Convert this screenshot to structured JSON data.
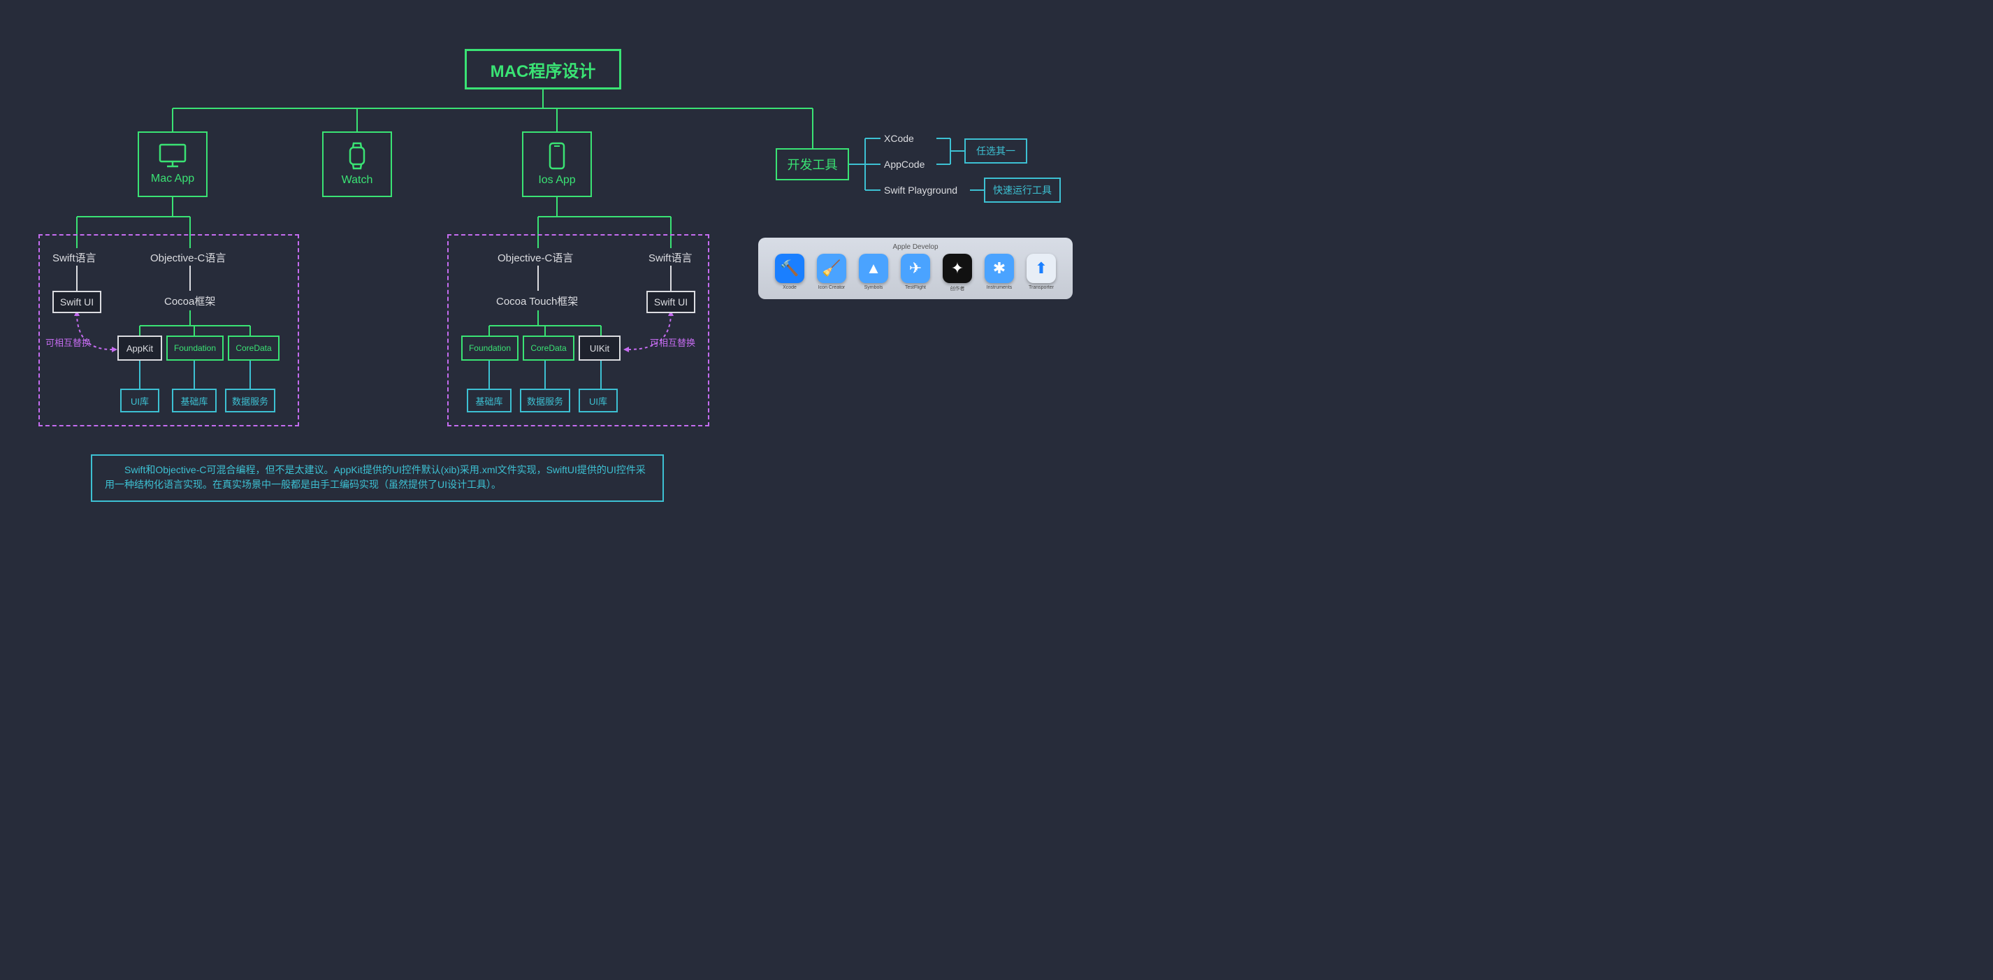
{
  "colors": {
    "bg": "#272c3a",
    "green": "#3ae374",
    "cyan": "#3dc1d3",
    "white": "#dcdde1",
    "purple": "#c56cf0",
    "darkBox": "#1e222d"
  },
  "root": {
    "title": "MAC程序设计",
    "fontSize": 24
  },
  "platforms": {
    "mac": {
      "label": "Mac App"
    },
    "watch": {
      "label": "Watch"
    },
    "ios": {
      "label": "Ios App"
    },
    "devtools": {
      "label": "开发工具"
    }
  },
  "mac": {
    "swiftLang": "Swift语言",
    "objcLang": "Objective-C语言",
    "swiftUI": "Swift UI",
    "cocoa": "Cocoa框架",
    "appkit": "AppKit",
    "foundation": "Foundation",
    "coredata": "CoreData",
    "uiLib": "UI库",
    "baseLib": "基础库",
    "dataSvc": "数据服务",
    "interchangeable": "可相互替换"
  },
  "ios": {
    "swiftLang": "Swift语言",
    "objcLang": "Objective-C语言",
    "swiftUI": "Swift UI",
    "cocoaTouch": "Cocoa Touch框架",
    "foundation": "Foundation",
    "coredata": "CoreData",
    "uikit": "UIKit",
    "baseLib": "基础库",
    "dataSvc": "数据服务",
    "uiLib": "UI库",
    "interchangeable": "可相互替换"
  },
  "devtools": {
    "xcode": "XCode",
    "appcode": "AppCode",
    "playground": "Swift Playground",
    "chooseOne": "任选其一",
    "quickRun": "快速运行工具"
  },
  "note": "Swift和Objective-C可混合编程，但不是太建议。AppKit提供的UI控件默认(xib)采用.xml文件实现，SwiftUI提供的UI控件采用一种结构化语言实现。在真实场景中一般都是由手工编码实现（虽然提供了UI设计工具）。",
  "dock": {
    "title": "Apple Develop",
    "items": [
      {
        "label": "Xcode",
        "color": "#1a7fff",
        "glyph": "🔨"
      },
      {
        "label": "Icon Creator",
        "color": "#4aa3ff",
        "glyph": "🧹"
      },
      {
        "label": "Symbols",
        "color": "#4aa3ff",
        "glyph": "▲"
      },
      {
        "label": "TestFlight",
        "color": "#4aa3ff",
        "glyph": "✈"
      },
      {
        "label": "创作者",
        "color": "#111111",
        "glyph": "✦"
      },
      {
        "label": "Instruments",
        "color": "#4aa3ff",
        "glyph": "✱"
      },
      {
        "label": "Transporter",
        "color": "#e8eef6",
        "glyph": "⬆"
      }
    ]
  }
}
